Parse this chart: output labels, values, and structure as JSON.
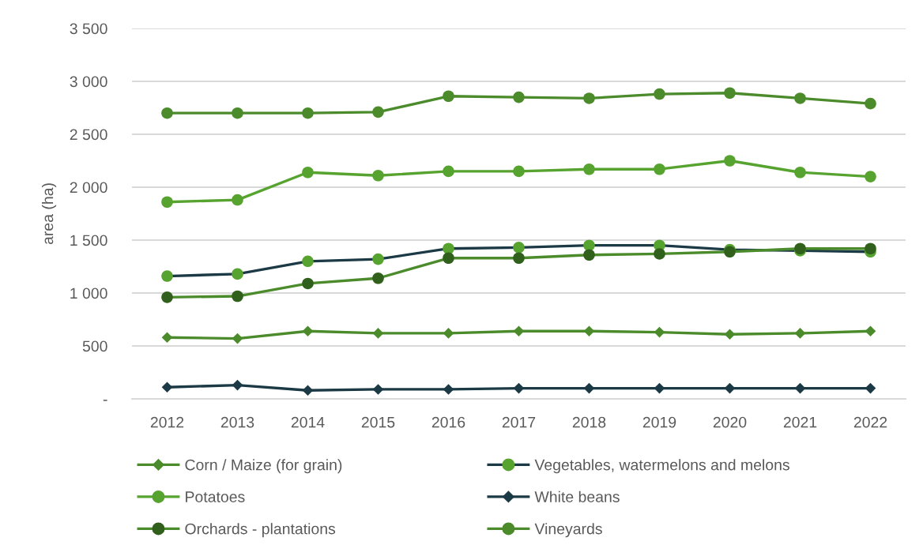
{
  "chart_data": {
    "type": "line",
    "ylabel": "area (ha)",
    "categories": [
      "2012",
      "2013",
      "2014",
      "2015",
      "2016",
      "2017",
      "2018",
      "2019",
      "2020",
      "2021",
      "2022"
    ],
    "series": [
      {
        "name": "Corn / Maize (for grain)",
        "color": "#4b8b2b",
        "marker": "diamond",
        "values": [
          580,
          570,
          640,
          620,
          620,
          640,
          640,
          630,
          610,
          620,
          640
        ]
      },
      {
        "name": "Vegetables, watermelons and melons",
        "color": "#1b3a45",
        "marker": "circle",
        "colors": [
          "#57a330",
          "#57a330",
          "#57a330",
          "#57a330",
          "#57a330",
          "#57a330",
          "#57a330",
          "#57a330",
          "#57a330",
          "#57a330",
          "#57a330"
        ],
        "values": [
          1160,
          1180,
          1300,
          1320,
          1420,
          1430,
          1450,
          1450,
          1410,
          1400,
          1390
        ]
      },
      {
        "name": "Potatoes",
        "color": "#57a330",
        "marker": "circle",
        "values": [
          1860,
          1880,
          2140,
          2110,
          2150,
          2150,
          2170,
          2170,
          2250,
          2140,
          2100
        ]
      },
      {
        "name": "White beans",
        "color": "#1b3a45",
        "marker": "diamond",
        "values": [
          110,
          130,
          80,
          90,
          90,
          100,
          100,
          100,
          100,
          100,
          100
        ]
      },
      {
        "name": "Orchards - plantations",
        "color": "#4b8b2b",
        "marker": "circle",
        "colors": [
          "#30601c",
          "#30601c",
          "#30601c",
          "#30601c",
          "#30601c",
          "#30601c",
          "#30601c",
          "#30601c",
          "#30601c",
          "#30601c",
          "#30601c"
        ],
        "values": [
          960,
          970,
          1090,
          1140,
          1330,
          1330,
          1360,
          1370,
          1390,
          1420,
          1420
        ]
      },
      {
        "name": "Vineyards",
        "color": "#4b8b2b",
        "marker": "circle",
        "values": [
          2700,
          2700,
          2700,
          2710,
          2860,
          2850,
          2840,
          2880,
          2890,
          2840,
          2790
        ]
      }
    ],
    "ylim": [
      0,
      3500
    ],
    "yticks": [
      {
        "value": 0,
        "label": "-"
      },
      500,
      {
        "value": 1000,
        "label": "1 000"
      },
      {
        "value": 1500,
        "label": "1 500"
      },
      {
        "value": 2000,
        "label": "2 000"
      },
      {
        "value": 2500,
        "label": "2 500"
      },
      {
        "value": 3000,
        "label": "3 000"
      },
      {
        "value": 3500,
        "label": "3 500"
      }
    ],
    "grid": "y",
    "legend": "bottom"
  }
}
